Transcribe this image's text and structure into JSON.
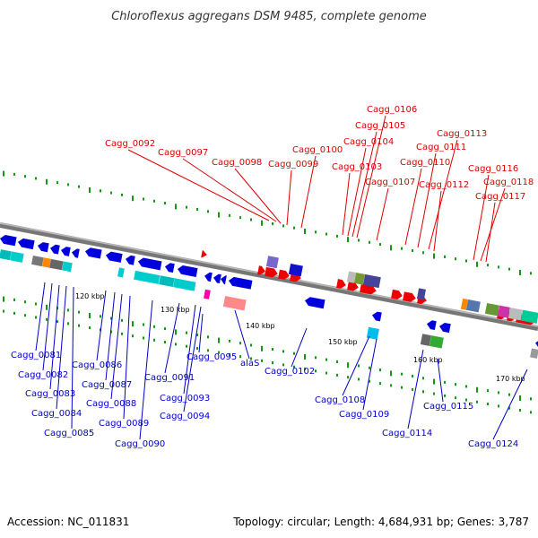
{
  "title": "Chloroflexus aggregans DSM 9485, complete genome",
  "accession_text": "Accession: NC_011831",
  "summary_text": "Topology: circular; Length: 4,684,931 bp; Genes: 3,787",
  "colors": {
    "forward_label": "#dd0000",
    "reverse_label": "#0000cc",
    "forward_gene": "#ee0000",
    "reverse_gene": "#0000dd",
    "backbone": "#888888",
    "gc_skew_dots": "#119911"
  },
  "scale_ticks": [
    "120 kbp",
    "130 kbp",
    "140 kbp",
    "150 kbp",
    "160 kbp",
    "170 kbp"
  ],
  "forward_labels": [
    "Cagg_0092",
    "Cagg_0097",
    "Cagg_0098",
    "Cagg_0099",
    "Cagg_0100",
    "Cagg_0103",
    "Cagg_0104",
    "Cagg_0105",
    "Cagg_0106",
    "Cagg_0107",
    "Cagg_0110",
    "Cagg_0111",
    "Cagg_0112",
    "Cagg_0113",
    "Cagg_0116",
    "Cagg_0117",
    "Cagg_0118"
  ],
  "reverse_labels": [
    "Cagg_0081",
    "Cagg_0082",
    "Cagg_0083",
    "Cagg_0084",
    "Cagg_0085",
    "Cagg_0086",
    "Cagg_0087",
    "Cagg_0088",
    "Cagg_0089",
    "Cagg_0090",
    "Cagg_0091",
    "Cagg_0093",
    "Cagg_0094",
    "Cagg_0095",
    "alaS",
    "Cagg_0102",
    "Cagg_0108",
    "Cagg_0109",
    "Cagg_0114",
    "Cagg_0115",
    "Cagg_0124"
  ]
}
